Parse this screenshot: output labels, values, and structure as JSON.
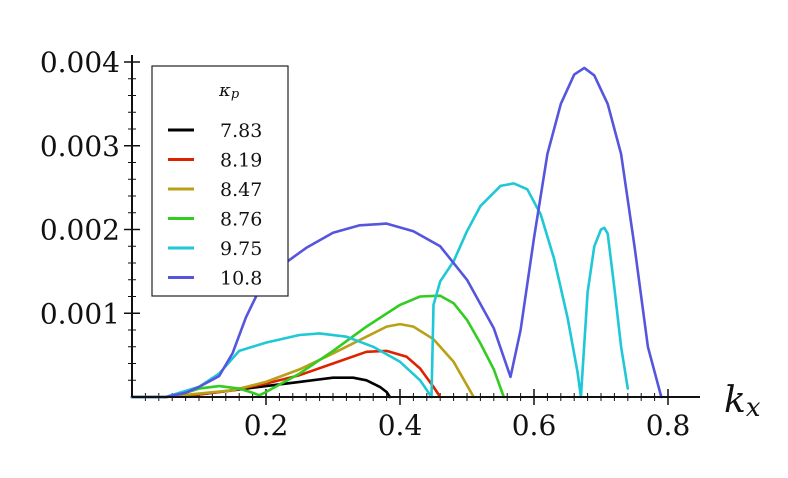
{
  "chart_data": {
    "type": "line",
    "xlabel": "k_x",
    "xlabel_main": "k",
    "xlabel_sub": "x",
    "ylabel": "",
    "xlim": [
      0.0,
      0.8
    ],
    "ylim": [
      0.0,
      0.004
    ],
    "x_ticks": [
      0.2,
      0.4,
      0.6,
      0.8
    ],
    "x_tick_labels": [
      "0.2",
      "0.4",
      "0.6",
      "0.8"
    ],
    "y_ticks": [
      0.001,
      0.002,
      0.003,
      0.004
    ],
    "y_tick_labels": [
      "0.001",
      "0.002",
      "0.003",
      "0.004"
    ],
    "grid": false,
    "legend": {
      "placement": "top-left",
      "title": "κ_p",
      "title_main": "κ",
      "title_sub": "p"
    },
    "series": [
      {
        "name": "7.83",
        "color": "#000000",
        "points": [
          [
            0.0,
            0.0
          ],
          [
            0.05,
            0.0
          ],
          [
            0.1,
            3e-05
          ],
          [
            0.15,
            8e-05
          ],
          [
            0.2,
            0.00013
          ],
          [
            0.25,
            0.00018
          ],
          [
            0.3,
            0.00023
          ],
          [
            0.33,
            0.00023
          ],
          [
            0.35,
            0.0002
          ],
          [
            0.37,
            0.00012
          ],
          [
            0.38,
            6e-05
          ],
          [
            0.385,
            0.0
          ]
        ]
      },
      {
        "name": "8.19",
        "color": "#dd2200",
        "points": [
          [
            0.0,
            0.0
          ],
          [
            0.05,
            0.0
          ],
          [
            0.1,
            3e-05
          ],
          [
            0.15,
            8e-05
          ],
          [
            0.2,
            0.00016
          ],
          [
            0.25,
            0.00026
          ],
          [
            0.3,
            0.0004
          ],
          [
            0.35,
            0.00054
          ],
          [
            0.38,
            0.00055
          ],
          [
            0.41,
            0.00048
          ],
          [
            0.43,
            0.00034
          ],
          [
            0.45,
            0.00012
          ],
          [
            0.46,
            0.0
          ]
        ]
      },
      {
        "name": "8.47",
        "color": "#b8a018",
        "points": [
          [
            0.0,
            0.0
          ],
          [
            0.05,
            0.0
          ],
          [
            0.1,
            4e-05
          ],
          [
            0.15,
            8e-05
          ],
          [
            0.2,
            0.00018
          ],
          [
            0.25,
            0.00033
          ],
          [
            0.3,
            0.00052
          ],
          [
            0.35,
            0.00072
          ],
          [
            0.38,
            0.00084
          ],
          [
            0.4,
            0.00087
          ],
          [
            0.42,
            0.00084
          ],
          [
            0.45,
            0.00069
          ],
          [
            0.48,
            0.00042
          ],
          [
            0.5,
            0.00014
          ],
          [
            0.51,
            0.0
          ]
        ]
      },
      {
        "name": "8.76",
        "color": "#33cc22",
        "points": [
          [
            0.0,
            0.0
          ],
          [
            0.05,
            0.0
          ],
          [
            0.08,
            5e-05
          ],
          [
            0.1,
            0.0001
          ],
          [
            0.13,
            0.00013
          ],
          [
            0.16,
            0.0001
          ],
          [
            0.18,
            5e-05
          ],
          [
            0.19,
            2e-05
          ],
          [
            0.2,
            6e-05
          ],
          [
            0.25,
            0.00028
          ],
          [
            0.3,
            0.00055
          ],
          [
            0.35,
            0.00084
          ],
          [
            0.4,
            0.0011
          ],
          [
            0.43,
            0.0012
          ],
          [
            0.46,
            0.00121
          ],
          [
            0.48,
            0.00112
          ],
          [
            0.5,
            0.00092
          ],
          [
            0.52,
            0.00064
          ],
          [
            0.54,
            0.00033
          ],
          [
            0.555,
            0.0
          ]
        ]
      },
      {
        "name": "9.75",
        "color": "#1ec8d6",
        "points": [
          [
            0.0,
            0.0
          ],
          [
            0.05,
            0.0
          ],
          [
            0.1,
            0.00012
          ],
          [
            0.13,
            0.00028
          ],
          [
            0.16,
            0.00055
          ],
          [
            0.2,
            0.00065
          ],
          [
            0.25,
            0.00074
          ],
          [
            0.28,
            0.00076
          ],
          [
            0.32,
            0.00072
          ],
          [
            0.36,
            0.0006
          ],
          [
            0.4,
            0.00042
          ],
          [
            0.43,
            0.0002
          ],
          [
            0.447,
            0.0
          ],
          [
            0.45,
            0.0011
          ],
          [
            0.46,
            0.00138
          ],
          [
            0.48,
            0.00162
          ],
          [
            0.5,
            0.00198
          ],
          [
            0.52,
            0.00228
          ],
          [
            0.55,
            0.00252
          ],
          [
            0.57,
            0.00255
          ],
          [
            0.59,
            0.00248
          ],
          [
            0.61,
            0.00218
          ],
          [
            0.63,
            0.00165
          ],
          [
            0.65,
            0.00095
          ],
          [
            0.665,
            0.0003
          ],
          [
            0.67,
            0.0
          ],
          [
            0.68,
            0.00125
          ],
          [
            0.69,
            0.0018
          ],
          [
            0.7,
            0.002
          ],
          [
            0.705,
            0.00202
          ],
          [
            0.71,
            0.00195
          ],
          [
            0.72,
            0.0013
          ],
          [
            0.73,
            0.0006
          ],
          [
            0.74,
            0.0001
          ]
        ]
      },
      {
        "name": "10.8",
        "color": "#5555dd",
        "points": [
          [
            0.0,
            0.0
          ],
          [
            0.05,
            0.0
          ],
          [
            0.08,
            5e-05
          ],
          [
            0.1,
            0.00012
          ],
          [
            0.13,
            0.00025
          ],
          [
            0.15,
            0.00052
          ],
          [
            0.17,
            0.00095
          ],
          [
            0.19,
            0.00128
          ],
          [
            0.22,
            0.00155
          ],
          [
            0.26,
            0.00178
          ],
          [
            0.3,
            0.00196
          ],
          [
            0.34,
            0.00205
          ],
          [
            0.38,
            0.00207
          ],
          [
            0.42,
            0.00198
          ],
          [
            0.46,
            0.0018
          ],
          [
            0.5,
            0.0014
          ],
          [
            0.54,
            0.00082
          ],
          [
            0.565,
            0.00024
          ],
          [
            0.58,
            0.0008
          ],
          [
            0.6,
            0.0019
          ],
          [
            0.62,
            0.0029
          ],
          [
            0.64,
            0.0035
          ],
          [
            0.66,
            0.00385
          ],
          [
            0.675,
            0.00393
          ],
          [
            0.69,
            0.00384
          ],
          [
            0.71,
            0.0035
          ],
          [
            0.73,
            0.0029
          ],
          [
            0.75,
            0.0018
          ],
          [
            0.77,
            0.0006
          ],
          [
            0.79,
            0.0
          ]
        ]
      }
    ]
  }
}
